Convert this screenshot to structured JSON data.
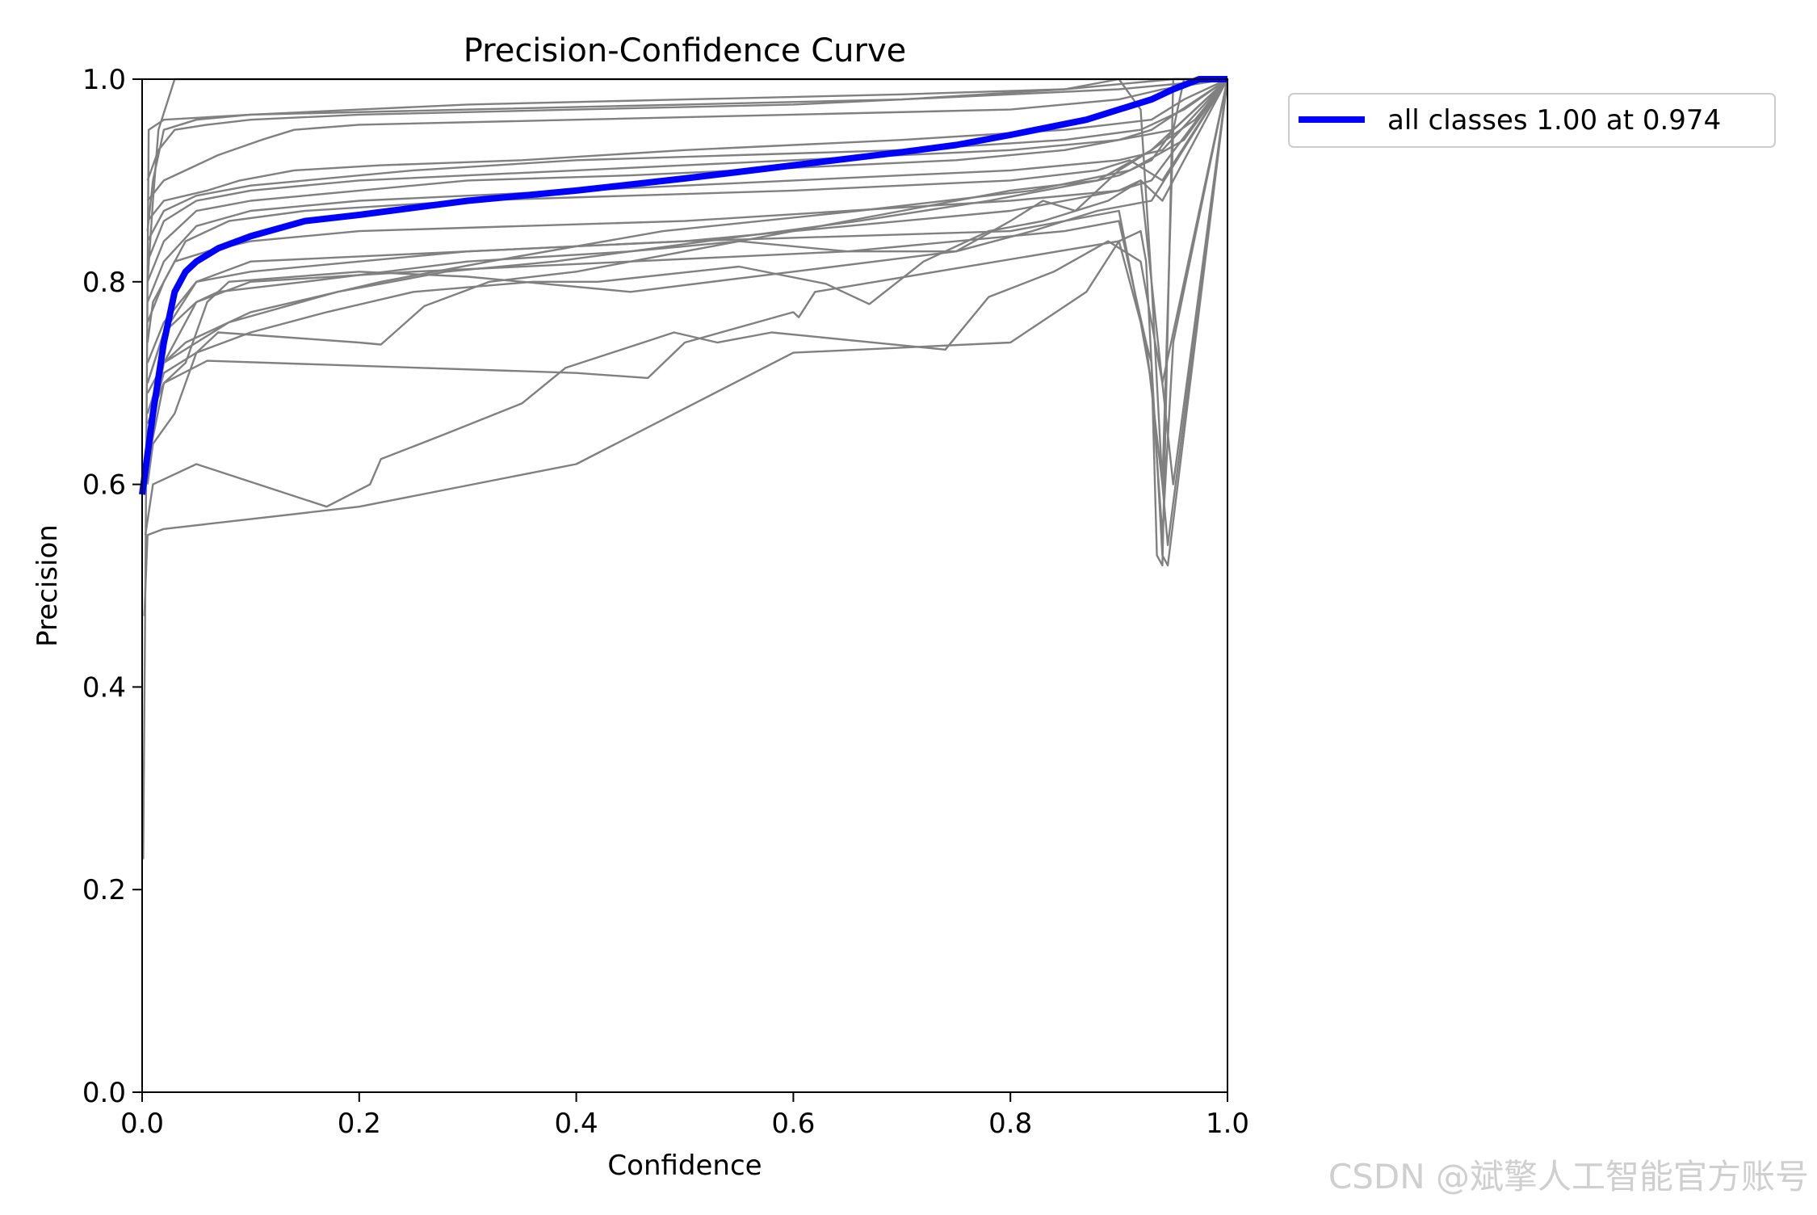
{
  "chart_data": {
    "type": "line",
    "title": "Precision-Confidence Curve",
    "xlabel": "Confidence",
    "ylabel": "Precision",
    "xlim": [
      0,
      1
    ],
    "ylim": [
      0,
      1
    ],
    "xticks": [
      "0.0",
      "0.2",
      "0.4",
      "0.6",
      "0.8",
      "1.0"
    ],
    "yticks": [
      "0.0",
      "0.2",
      "0.4",
      "0.6",
      "0.8",
      "1.0"
    ],
    "legend_position": "outside-top-right",
    "main_series": {
      "name": "all classes 1.00 at 0.974",
      "color": "#0000ff",
      "x": [
        0.0,
        0.005,
        0.01,
        0.02,
        0.03,
        0.04,
        0.05,
        0.07,
        0.1,
        0.15,
        0.2,
        0.3,
        0.4,
        0.5,
        0.6,
        0.7,
        0.75,
        0.8,
        0.87,
        0.9,
        0.93,
        0.95,
        0.974,
        1.0
      ],
      "y": [
        0.59,
        0.63,
        0.67,
        0.74,
        0.79,
        0.81,
        0.82,
        0.833,
        0.845,
        0.86,
        0.866,
        0.88,
        0.89,
        0.902,
        0.915,
        0.928,
        0.935,
        0.945,
        0.96,
        0.97,
        0.98,
        0.99,
        1.0,
        1.0
      ]
    },
    "class_series_color": "#808080",
    "class_series": [
      {
        "x": [
          0.001,
          0.003,
          0.006,
          0.02,
          0.1,
          0.3,
          0.5,
          0.7,
          0.85,
          0.9,
          0.92,
          0.93,
          0.94,
          0.95,
          0.96,
          1.0
        ],
        "y": [
          0.23,
          0.5,
          0.95,
          0.96,
          0.965,
          0.97,
          0.975,
          0.98,
          0.99,
          1.0,
          0.97,
          0.8,
          0.6,
          0.95,
          1.0,
          1.0
        ]
      },
      {
        "x": [
          0.002,
          0.005,
          0.02,
          0.2,
          0.4,
          0.6,
          0.8,
          0.87,
          0.9,
          0.92,
          0.925,
          0.93,
          0.935,
          0.94,
          0.95,
          1.0
        ],
        "y": [
          0.47,
          0.55,
          0.556,
          0.578,
          0.62,
          0.73,
          0.74,
          0.79,
          0.84,
          0.85,
          0.82,
          0.72,
          0.53,
          0.52,
          1.0,
          1.0
        ]
      },
      {
        "x": [
          0.003,
          0.01,
          0.05,
          0.17,
          0.21,
          0.22,
          0.28,
          0.35,
          0.39,
          0.49,
          0.53,
          0.58,
          0.74,
          0.78,
          0.84,
          0.89,
          0.92,
          0.94,
          1.0
        ],
        "y": [
          0.55,
          0.6,
          0.62,
          0.578,
          0.6,
          0.625,
          0.65,
          0.68,
          0.715,
          0.75,
          0.74,
          0.75,
          0.733,
          0.785,
          0.81,
          0.84,
          0.82,
          0.7,
          1.0
        ]
      },
      {
        "x": [
          0.005,
          0.02,
          0.06,
          0.4,
          0.466,
          0.5,
          0.6,
          0.605,
          0.62,
          0.9,
          0.93,
          0.94,
          0.945,
          1.0
        ],
        "y": [
          0.62,
          0.7,
          0.722,
          0.71,
          0.705,
          0.74,
          0.77,
          0.765,
          0.79,
          0.84,
          0.72,
          0.53,
          0.52,
          1.0
        ]
      },
      {
        "x": [
          0.005,
          0.01,
          0.03,
          0.05,
          0.07,
          0.2,
          0.22,
          0.26,
          0.32,
          0.4,
          0.5,
          0.6,
          0.7,
          0.8,
          0.88,
          0.9,
          0.93,
          0.95,
          1.0
        ],
        "y": [
          0.6,
          0.64,
          0.67,
          0.73,
          0.75,
          0.74,
          0.738,
          0.776,
          0.8,
          0.81,
          0.83,
          0.85,
          0.87,
          0.89,
          0.9,
          0.905,
          0.92,
          0.95,
          1.0
        ]
      },
      {
        "x": [
          0.005,
          0.02,
          0.05,
          0.1,
          0.17,
          0.25,
          0.36,
          0.42,
          0.55,
          0.63,
          0.67,
          0.72,
          0.78,
          0.83,
          0.89,
          0.92,
          0.95,
          1.0
        ],
        "y": [
          0.65,
          0.71,
          0.73,
          0.75,
          0.77,
          0.79,
          0.8,
          0.8,
          0.815,
          0.798,
          0.778,
          0.82,
          0.85,
          0.86,
          0.88,
          0.9,
          0.6,
          1.0
        ]
      },
      {
        "x": [
          0.005,
          0.02,
          0.04,
          0.06,
          0.08,
          0.2,
          0.3,
          0.45,
          0.6,
          0.75,
          0.82,
          0.88,
          0.93,
          1.0
        ],
        "y": [
          0.66,
          0.7,
          0.72,
          0.78,
          0.8,
          0.81,
          0.805,
          0.79,
          0.81,
          0.83,
          0.85,
          0.87,
          0.88,
          1.0
        ]
      },
      {
        "x": [
          0.005,
          0.02,
          0.05,
          0.07,
          0.15,
          0.3,
          0.45,
          0.55,
          0.65,
          0.71,
          0.75,
          0.8,
          0.83,
          0.86,
          0.9,
          0.93,
          1.0
        ],
        "y": [
          0.7,
          0.75,
          0.78,
          0.79,
          0.8,
          0.82,
          0.83,
          0.84,
          0.83,
          0.83,
          0.83,
          0.86,
          0.88,
          0.87,
          0.91,
          0.93,
          1.0
        ]
      },
      {
        "x": [
          0.005,
          0.02,
          0.05,
          0.1,
          0.2,
          0.3,
          0.5,
          0.6,
          0.7,
          0.8,
          0.85,
          0.9,
          0.93,
          1.0
        ],
        "y": [
          0.72,
          0.76,
          0.8,
          0.81,
          0.82,
          0.83,
          0.84,
          0.85,
          0.86,
          0.87,
          0.88,
          0.89,
          0.9,
          1.0
        ]
      },
      {
        "x": [
          0.005,
          0.01,
          0.03,
          0.06,
          0.1,
          0.2,
          0.35,
          0.5,
          0.65,
          0.8,
          0.9,
          0.92,
          0.94,
          1.0
        ],
        "y": [
          0.74,
          0.78,
          0.82,
          0.83,
          0.84,
          0.85,
          0.855,
          0.86,
          0.87,
          0.88,
          0.89,
          0.9,
          0.88,
          1.0
        ]
      },
      {
        "x": [
          0.005,
          0.02,
          0.04,
          0.08,
          0.15,
          0.3,
          0.45,
          0.6,
          0.7,
          0.8,
          0.88,
          0.91,
          0.94,
          1.0
        ],
        "y": [
          0.76,
          0.8,
          0.84,
          0.86,
          0.87,
          0.88,
          0.885,
          0.89,
          0.895,
          0.9,
          0.91,
          0.92,
          0.9,
          1.0
        ]
      },
      {
        "x": [
          0.005,
          0.02,
          0.05,
          0.1,
          0.2,
          0.3,
          0.4,
          0.5,
          0.6,
          0.7,
          0.8,
          0.9,
          0.94,
          1.0
        ],
        "y": [
          0.78,
          0.82,
          0.855,
          0.87,
          0.88,
          0.885,
          0.89,
          0.895,
          0.9,
          0.905,
          0.91,
          0.92,
          0.93,
          1.0
        ]
      },
      {
        "x": [
          0.005,
          0.02,
          0.05,
          0.1,
          0.2,
          0.3,
          0.45,
          0.55,
          0.65,
          0.75,
          0.85,
          0.9,
          0.93,
          1.0
        ],
        "y": [
          0.8,
          0.84,
          0.87,
          0.88,
          0.89,
          0.9,
          0.905,
          0.91,
          0.915,
          0.92,
          0.93,
          0.94,
          0.95,
          1.0
        ]
      },
      {
        "x": [
          0.005,
          0.02,
          0.05,
          0.1,
          0.2,
          0.3,
          0.4,
          0.5,
          0.6,
          0.7,
          0.8,
          0.9,
          0.95,
          1.0
        ],
        "y": [
          0.82,
          0.86,
          0.88,
          0.89,
          0.9,
          0.905,
          0.91,
          0.915,
          0.92,
          0.925,
          0.93,
          0.94,
          0.95,
          1.0
        ]
      },
      {
        "x": [
          0.005,
          0.02,
          0.05,
          0.1,
          0.15,
          0.25,
          0.4,
          0.55,
          0.7,
          0.85,
          0.92,
          0.96,
          1.0
        ],
        "y": [
          0.84,
          0.87,
          0.885,
          0.895,
          0.9,
          0.91,
          0.92,
          0.925,
          0.93,
          0.94,
          0.95,
          0.97,
          1.0
        ]
      },
      {
        "x": [
          0.005,
          0.02,
          0.06,
          0.09,
          0.14,
          0.22,
          0.35,
          0.5,
          0.7,
          0.85,
          0.93,
          0.96,
          1.0
        ],
        "y": [
          0.86,
          0.88,
          0.89,
          0.9,
          0.91,
          0.915,
          0.92,
          0.93,
          0.94,
          0.95,
          0.96,
          0.98,
          1.0
        ]
      },
      {
        "x": [
          0.005,
          0.02,
          0.04,
          0.07,
          0.11,
          0.14,
          0.2,
          0.4,
          0.6,
          0.8,
          0.9,
          0.94,
          1.0
        ],
        "y": [
          0.88,
          0.9,
          0.91,
          0.925,
          0.94,
          0.95,
          0.955,
          0.96,
          0.965,
          0.97,
          0.98,
          0.99,
          1.0
        ]
      },
      {
        "x": [
          0.005,
          0.015,
          0.03,
          0.06,
          0.1,
          0.2,
          0.4,
          0.6,
          0.8,
          0.9,
          1.0
        ],
        "y": [
          0.9,
          0.93,
          0.95,
          0.955,
          0.96,
          0.965,
          0.97,
          0.975,
          0.985,
          0.99,
          1.0
        ]
      },
      {
        "x": [
          0.005,
          0.01,
          0.02,
          0.05,
          0.1,
          0.2,
          0.3,
          0.5,
          0.7,
          0.85,
          0.95,
          1.0
        ],
        "y": [
          0.85,
          0.9,
          0.95,
          0.96,
          0.965,
          0.97,
          0.975,
          0.98,
          0.985,
          0.99,
          1.0,
          1.0
        ]
      },
      {
        "x": [
          0.005,
          0.01,
          0.015,
          0.03,
          0.1,
          0.2,
          0.35,
          0.55,
          0.75,
          0.9,
          1.0
        ],
        "y": [
          0.8,
          0.88,
          0.95,
          1.0,
          1.0,
          1.0,
          1.0,
          1.0,
          1.0,
          1.0,
          1.0
        ]
      },
      {
        "x": [
          0.005,
          0.02,
          0.05,
          0.1,
          0.3,
          0.5,
          0.8,
          0.9,
          0.92,
          0.93,
          0.94,
          0.95,
          1.0
        ],
        "y": [
          0.7,
          0.75,
          0.8,
          0.82,
          0.83,
          0.84,
          0.85,
          0.87,
          0.76,
          0.7,
          0.55,
          0.74,
          1.0
        ]
      },
      {
        "x": [
          0.005,
          0.02,
          0.05,
          0.1,
          0.25,
          0.45,
          0.65,
          0.85,
          0.9,
          0.925,
          0.94,
          0.945,
          1.0
        ],
        "y": [
          0.69,
          0.72,
          0.78,
          0.8,
          0.81,
          0.82,
          0.83,
          0.85,
          0.86,
          0.74,
          0.6,
          0.54,
          1.0
        ]
      },
      {
        "x": [
          0.005,
          0.01,
          0.02,
          0.04,
          0.1,
          0.22,
          0.32,
          0.48,
          0.66,
          0.82,
          0.91,
          0.96,
          1.0
        ],
        "y": [
          0.63,
          0.66,
          0.72,
          0.74,
          0.77,
          0.8,
          0.82,
          0.85,
          0.87,
          0.89,
          0.91,
          0.94,
          1.0
        ]
      },
      {
        "x": [
          0.005,
          0.02,
          0.08,
          0.18,
          0.28,
          0.38,
          0.52,
          0.66,
          0.78,
          0.88,
          0.93,
          0.97,
          1.0
        ],
        "y": [
          0.67,
          0.72,
          0.76,
          0.79,
          0.81,
          0.82,
          0.84,
          0.86,
          0.88,
          0.9,
          0.93,
          0.96,
          1.0
        ]
      }
    ]
  },
  "watermark": "CSDN @斌擎人工智能官方账号"
}
